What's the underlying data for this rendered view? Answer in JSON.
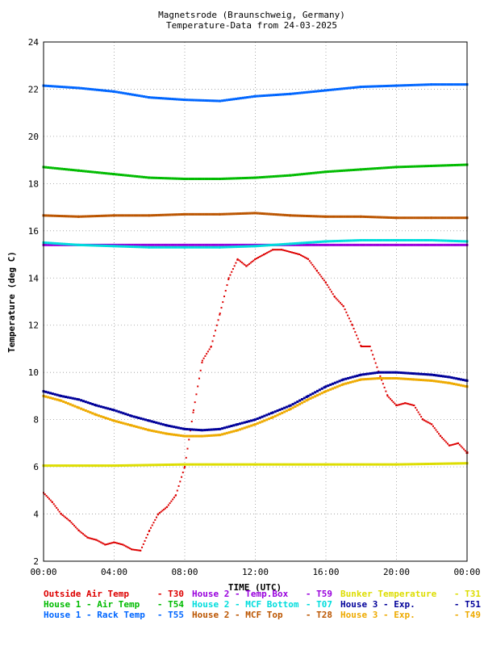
{
  "chart_data": {
    "type": "scatter",
    "title": "Magnetsrode (Braunschweig, Germany)",
    "subtitle": "Temperature-Data from 24-03-2025",
    "xlabel": "TIME (UTC)",
    "ylabel": "Temperature (deg C)",
    "xlim": [
      0,
      24
    ],
    "ylim": [
      2,
      24
    ],
    "x_ticks": [
      {
        "value": 0,
        "label": "00:00"
      },
      {
        "value": 4,
        "label": "04:00"
      },
      {
        "value": 8,
        "label": "08:00"
      },
      {
        "value": 12,
        "label": "12:00"
      },
      {
        "value": 16,
        "label": "16:00"
      },
      {
        "value": 20,
        "label": "20:00"
      },
      {
        "value": 24,
        "label": "00:00"
      }
    ],
    "y_ticks": [
      2,
      4,
      6,
      8,
      10,
      12,
      14,
      16,
      18,
      20,
      22,
      24
    ],
    "grid": true,
    "legend_position": "bottom",
    "series": [
      {
        "name": "Outside Air Temp",
        "sensor": "T30",
        "color": "#dd0000",
        "x": [
          0,
          0.5,
          1,
          1.5,
          2,
          2.5,
          3,
          3.5,
          4,
          4.5,
          5,
          5.5,
          6,
          6.5,
          7,
          7.5,
          8,
          8.5,
          9,
          9.5,
          10,
          10.5,
          11,
          11.5,
          12,
          12.5,
          13,
          13.5,
          14,
          14.5,
          15,
          15.5,
          16,
          16.5,
          17,
          17.5,
          18,
          18.5,
          19,
          19.5,
          20,
          20.5,
          21,
          21.5,
          22,
          22.5,
          23,
          23.5,
          24
        ],
        "y": [
          4.9,
          4.5,
          4.0,
          3.7,
          3.3,
          3.0,
          2.9,
          2.7,
          2.8,
          2.7,
          2.5,
          2.45,
          3.3,
          4.0,
          4.3,
          4.8,
          6.0,
          8.4,
          10.5,
          11.1,
          12.5,
          14.0,
          14.8,
          14.5,
          14.8,
          15.0,
          15.2,
          15.2,
          15.1,
          15.0,
          14.8,
          14.3,
          13.8,
          13.2,
          12.8,
          12.0,
          11.1,
          11.1,
          10.0,
          9.0,
          8.6,
          8.7,
          8.6,
          8.0,
          7.8,
          7.3,
          6.9,
          7.0,
          6.6
        ]
      },
      {
        "name": "House 1 - Air  Temp",
        "sensor": "T54",
        "color": "#00bb00",
        "x": [
          0,
          2,
          4,
          6,
          8,
          10,
          12,
          14,
          16,
          18,
          20,
          22,
          24
        ],
        "y": [
          18.7,
          18.55,
          18.4,
          18.25,
          18.2,
          18.2,
          18.25,
          18.35,
          18.5,
          18.6,
          18.7,
          18.75,
          18.8
        ]
      },
      {
        "name": "House 1 - Rack Temp",
        "sensor": "T55",
        "color": "#0066ff",
        "x": [
          0,
          2,
          4,
          6,
          8,
          10,
          12,
          14,
          16,
          18,
          20,
          22,
          24
        ],
        "y": [
          22.15,
          22.05,
          21.9,
          21.65,
          21.55,
          21.5,
          21.7,
          21.8,
          21.95,
          22.1,
          22.15,
          22.2,
          22.2
        ]
      },
      {
        "name": "House 2 - Temp.Box",
        "sensor": "T59",
        "color": "#9900dd",
        "x": [
          0,
          4,
          8,
          12,
          16,
          20,
          24
        ],
        "y": [
          15.4,
          15.4,
          15.4,
          15.4,
          15.4,
          15.4,
          15.4
        ]
      },
      {
        "name": "House 2 - MCF Bottom",
        "sensor": "T07",
        "color": "#00dddd",
        "x": [
          0,
          2,
          4,
          6,
          8,
          10,
          12,
          14,
          16,
          18,
          20,
          22,
          24
        ],
        "y": [
          15.5,
          15.4,
          15.35,
          15.3,
          15.3,
          15.3,
          15.35,
          15.45,
          15.55,
          15.6,
          15.6,
          15.6,
          15.55
        ]
      },
      {
        "name": "House 2 - MCF Top",
        "sensor": "T28",
        "color": "#bb5500",
        "x": [
          0,
          2,
          4,
          6,
          8,
          10,
          12,
          14,
          16,
          18,
          20,
          22,
          24
        ],
        "y": [
          16.65,
          16.6,
          16.65,
          16.65,
          16.7,
          16.7,
          16.75,
          16.65,
          16.6,
          16.6,
          16.55,
          16.55,
          16.55
        ]
      },
      {
        "name": "Bunker Temperature",
        "sensor": "T31",
        "color": "#dddd00",
        "x": [
          0,
          4,
          8,
          12,
          16,
          20,
          24
        ],
        "y": [
          6.05,
          6.05,
          6.1,
          6.1,
          6.1,
          6.1,
          6.15
        ]
      },
      {
        "name": "House 3 - Exp.",
        "sensor": "T51",
        "color": "#000099",
        "x": [
          0,
          1,
          2,
          3,
          4,
          5,
          6,
          7,
          8,
          9,
          10,
          11,
          12,
          13,
          14,
          15,
          16,
          17,
          18,
          19,
          20,
          21,
          22,
          23,
          24
        ],
        "y": [
          9.2,
          9.0,
          8.85,
          8.6,
          8.4,
          8.15,
          7.95,
          7.75,
          7.6,
          7.55,
          7.6,
          7.8,
          8.0,
          8.3,
          8.6,
          9.0,
          9.4,
          9.7,
          9.9,
          10.0,
          10.0,
          9.95,
          9.9,
          9.8,
          9.65
        ]
      },
      {
        "name": "House 3 - Exp.",
        "sensor": "T49",
        "color": "#eeaa00",
        "x": [
          0,
          1,
          2,
          3,
          4,
          5,
          6,
          7,
          8,
          9,
          10,
          11,
          12,
          13,
          14,
          15,
          16,
          17,
          18,
          19,
          20,
          21,
          22,
          23,
          24
        ],
        "y": [
          9.0,
          8.8,
          8.5,
          8.2,
          7.95,
          7.75,
          7.55,
          7.4,
          7.3,
          7.3,
          7.35,
          7.55,
          7.8,
          8.1,
          8.45,
          8.85,
          9.2,
          9.5,
          9.7,
          9.75,
          9.75,
          9.7,
          9.65,
          9.55,
          9.4
        ]
      }
    ]
  }
}
